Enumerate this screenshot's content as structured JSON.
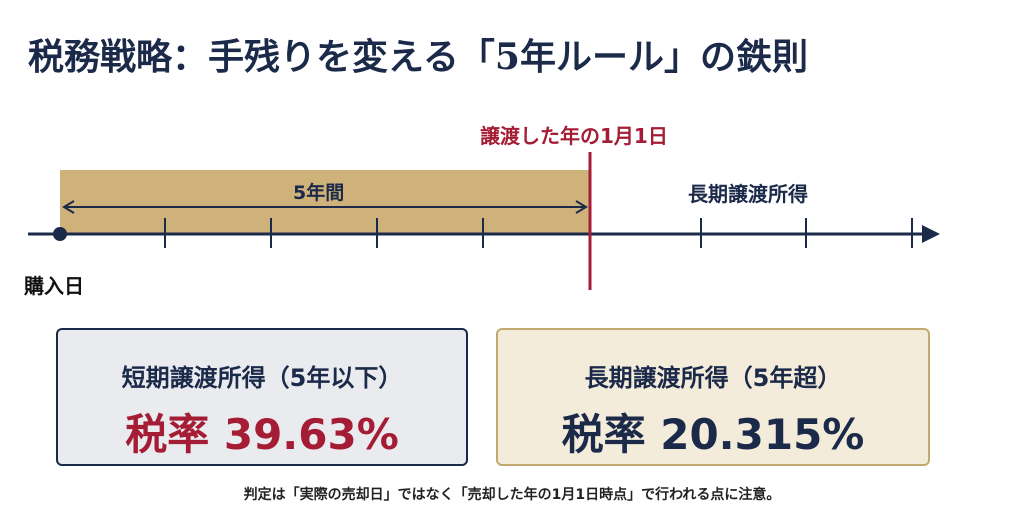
{
  "title": "税務戦略：手残りを変える「5年ルール」の鉄則",
  "timeline": {
    "cutoff_label": "譲渡した年の1月1日",
    "period_label": "5年間",
    "long_term_label": "長期譲渡所得",
    "start_label": "購入日"
  },
  "boxes": {
    "short": {
      "label": "短期譲渡所得（5年以下）",
      "rate": "税率 39.63%"
    },
    "long": {
      "label": "長期譲渡所得（5年超）",
      "rate": "税率 20.315%"
    }
  },
  "note": "判定は「実際の売却日」ではなく「売却した年の1月1日時点」で行われる点に注意。",
  "colors": {
    "navy": "#1c2a4a",
    "red": "#a51d34",
    "gold_band": "#cfb27a",
    "gold_border": "#c2aa6e"
  }
}
